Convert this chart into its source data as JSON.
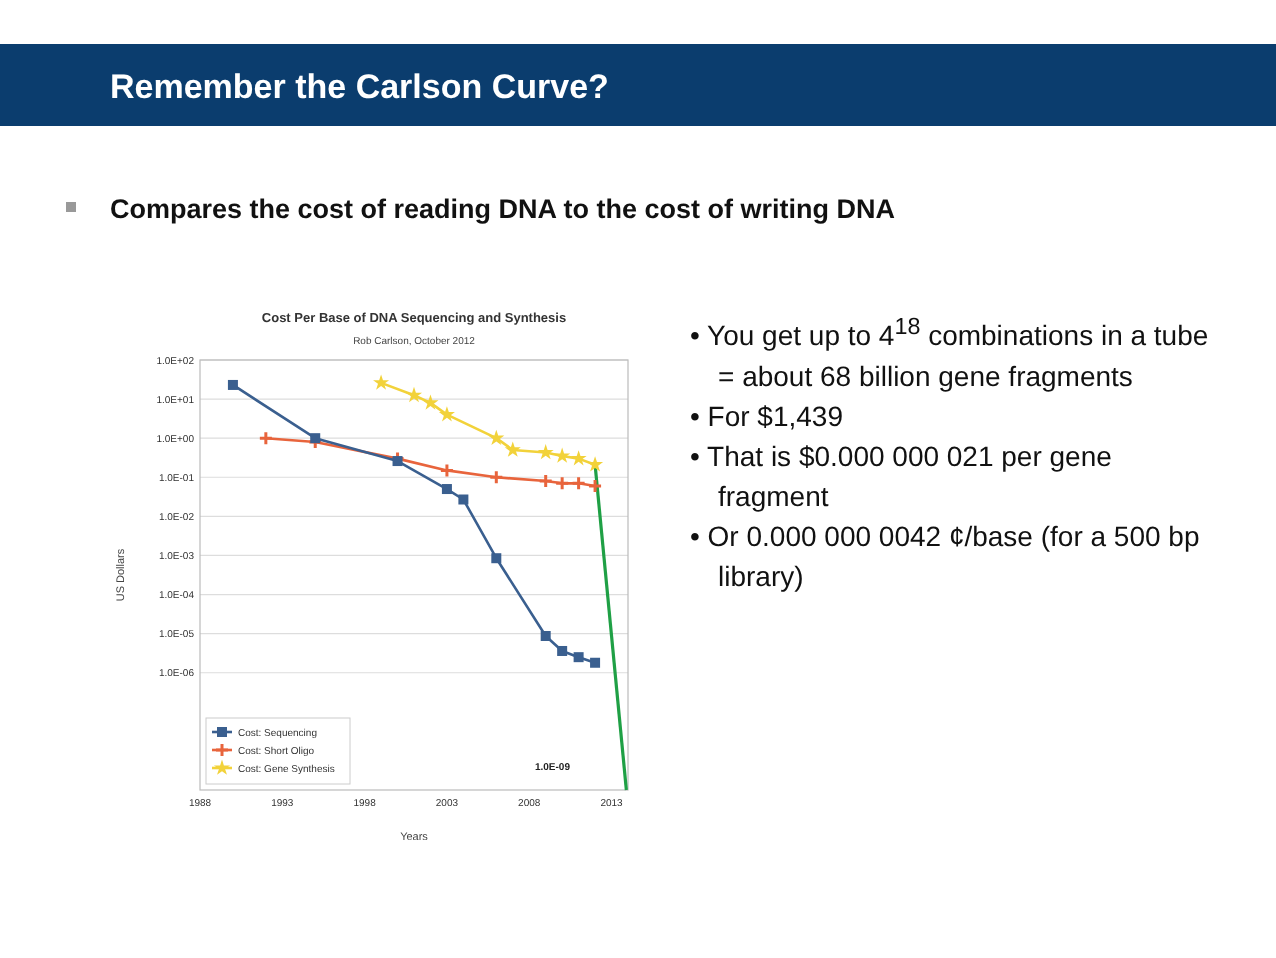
{
  "chart_data": {
    "type": "line",
    "title": "Cost Per Base of DNA Sequencing and Synthesis",
    "subtitle": "Rob Carlson, October 2012",
    "xlabel": "Years",
    "ylabel": "US Dollars",
    "annotations": [
      "Remember the Carlson Curve?",
      "Compares the cost of reading DNA to the cost of writing DNA",
      "• You get up to 4$^{18}$ combinations in a tube = about 68 billion gene fragments",
      "• For $1,439",
      "• That is $0.000 000 021 per gene fragment",
      "• Or 0.000 000 0042 ¢/base (for a 500 bp library)",
      "1.0E-09"
    ],
    "log": true,
    "grid": "y",
    "legend": "bottom left",
    "line_style": "solid",
    "xlim": [
      1988,
      2014
    ],
    "xticks": [
      1988,
      1993,
      1998,
      2003,
      2008,
      2013
    ],
    "ylim": [
      1e-09,
      100
    ],
    "yticks": [
      {
        "value": 1e-06,
        "label": "1.0E-06"
      },
      {
        "value": 1e-05,
        "label": "1.0E-05"
      },
      {
        "value": 0.0001,
        "label": "1.0E-04"
      },
      {
        "value": 0.001,
        "label": "1.0E-03"
      },
      {
        "value": 0.01,
        "label": "1.0E-02"
      },
      {
        "value": 0.1,
        "label": "1.0E-01"
      },
      {
        "value": 1,
        "label": "1.0E+00"
      },
      {
        "value": 10,
        "label": "1.0E+01"
      },
      {
        "value": 100,
        "label": "1.0E+02"
      }
    ],
    "series": [
      {
        "name": "Cost: Sequencing",
        "color": "#3a5f8f",
        "marker": "square",
        "x": [
          1990,
          1995,
          2000,
          2003,
          2004,
          2006,
          2009,
          2010,
          2011,
          2012
        ],
        "values": [
          23,
          1.0,
          0.26,
          0.05,
          0.027,
          0.00085,
          8.7e-06,
          3.6e-06,
          2.5e-06,
          1.8e-06
        ]
      },
      {
        "name": "Cost: Short Oligo",
        "color": "#e8643c",
        "marker": "cross",
        "x": [
          1992,
          1995,
          2000,
          2003,
          2006,
          2009,
          2010,
          2011,
          2012
        ],
        "values": [
          1.0,
          0.8,
          0.3,
          0.15,
          0.1,
          0.08,
          0.07,
          0.07,
          0.06
        ]
      },
      {
        "name": "Cost: Gene Synthesis",
        "color": "#f2d23a",
        "marker": "star",
        "x": [
          1999,
          2001,
          2002,
          2003,
          2006,
          2007,
          2009,
          2010,
          2011,
          2012
        ],
        "values": [
          26,
          12.5,
          8,
          4,
          1.0,
          0.5,
          0.43,
          0.35,
          0.3,
          0.21
        ]
      },
      {
        "color": "#1fa045",
        "marker": "none",
        "x": [
          2012,
          2013.9
        ],
        "values": [
          0.21,
          1e-09
        ]
      }
    ]
  }
}
